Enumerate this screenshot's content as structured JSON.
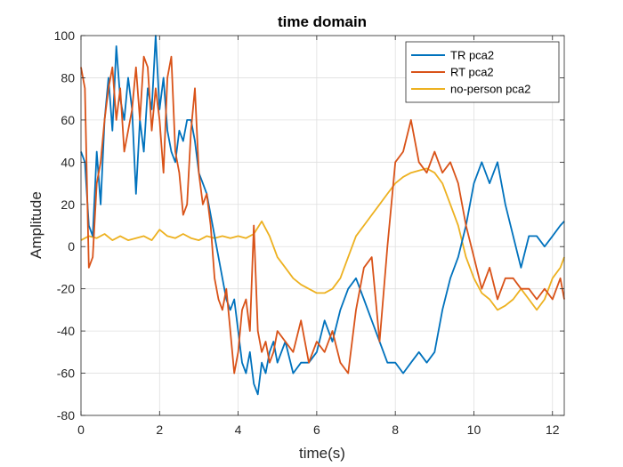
{
  "chart_data": {
    "type": "line",
    "title": "time domain",
    "xlabel": "time(s)",
    "ylabel": "Amplitude",
    "xlim": [
      0,
      12.3
    ],
    "ylim": [
      -80,
      100
    ],
    "xticks": [
      0,
      2,
      4,
      6,
      8,
      10,
      12
    ],
    "yticks": [
      -80,
      -60,
      -40,
      -20,
      0,
      20,
      40,
      60,
      80,
      100
    ],
    "xtick_labels": [
      "0",
      "2",
      "4",
      "6",
      "8",
      "10",
      "12"
    ],
    "ytick_labels": [
      "-80",
      "-60",
      "-40",
      "-20",
      "0",
      "20",
      "40",
      "60",
      "80",
      "100"
    ],
    "grid": true,
    "legend_position": "top-right",
    "series": [
      {
        "name": "TR pca2",
        "color": "#0072BD",
        "x": [
          0,
          0.1,
          0.2,
          0.3,
          0.4,
          0.5,
          0.6,
          0.7,
          0.8,
          0.9,
          1.0,
          1.1,
          1.2,
          1.3,
          1.4,
          1.5,
          1.6,
          1.7,
          1.8,
          1.9,
          2.0,
          2.1,
          2.2,
          2.3,
          2.4,
          2.5,
          2.6,
          2.7,
          2.8,
          2.9,
          3.0,
          3.1,
          3.2,
          3.3,
          3.4,
          3.5,
          3.6,
          3.7,
          3.8,
          3.9,
          4.0,
          4.1,
          4.2,
          4.3,
          4.4,
          4.5,
          4.6,
          4.7,
          4.8,
          4.9,
          5.0,
          5.2,
          5.4,
          5.6,
          5.8,
          6.0,
          6.2,
          6.4,
          6.6,
          6.8,
          7.0,
          7.2,
          7.4,
          7.6,
          7.8,
          8.0,
          8.2,
          8.4,
          8.6,
          8.8,
          9.0,
          9.2,
          9.4,
          9.6,
          9.8,
          10.0,
          10.2,
          10.4,
          10.6,
          10.8,
          11.0,
          11.2,
          11.4,
          11.6,
          11.8,
          12.0,
          12.2,
          12.3
        ],
        "y": [
          45,
          40,
          10,
          5,
          45,
          20,
          60,
          80,
          55,
          95,
          70,
          60,
          80,
          65,
          25,
          60,
          45,
          75,
          65,
          100,
          65,
          80,
          55,
          45,
          40,
          55,
          50,
          60,
          60,
          50,
          35,
          30,
          25,
          15,
          5,
          -5,
          -15,
          -25,
          -30,
          -25,
          -40,
          -55,
          -60,
          -50,
          -65,
          -70,
          -55,
          -60,
          -50,
          -45,
          -55,
          -45,
          -60,
          -55,
          -55,
          -50,
          -35,
          -45,
          -30,
          -20,
          -15,
          -25,
          -35,
          -45,
          -55,
          -55,
          -60,
          -55,
          -50,
          -55,
          -50,
          -30,
          -15,
          -5,
          10,
          30,
          40,
          30,
          40,
          20,
          5,
          -10,
          5,
          5,
          0,
          5,
          10,
          12
        ]
      },
      {
        "name": "RT pca2",
        "color": "#D95319",
        "x": [
          0,
          0.1,
          0.2,
          0.3,
          0.4,
          0.5,
          0.6,
          0.7,
          0.8,
          0.9,
          1.0,
          1.1,
          1.2,
          1.3,
          1.4,
          1.5,
          1.6,
          1.7,
          1.8,
          1.9,
          2.0,
          2.1,
          2.2,
          2.3,
          2.4,
          2.5,
          2.6,
          2.7,
          2.8,
          2.9,
          3.0,
          3.1,
          3.2,
          3.3,
          3.4,
          3.5,
          3.6,
          3.7,
          3.8,
          3.9,
          4.0,
          4.1,
          4.2,
          4.3,
          4.4,
          4.5,
          4.6,
          4.7,
          4.8,
          4.9,
          5.0,
          5.2,
          5.4,
          5.6,
          5.8,
          6.0,
          6.2,
          6.4,
          6.6,
          6.8,
          7.0,
          7.2,
          7.4,
          7.6,
          7.8,
          8.0,
          8.2,
          8.4,
          8.6,
          8.8,
          9.0,
          9.2,
          9.4,
          9.6,
          9.8,
          10.0,
          10.2,
          10.4,
          10.6,
          10.8,
          11.0,
          11.2,
          11.4,
          11.6,
          11.8,
          12.0,
          12.2,
          12.3
        ],
        "y": [
          85,
          75,
          -10,
          -5,
          30,
          40,
          60,
          75,
          85,
          60,
          75,
          45,
          55,
          65,
          85,
          60,
          90,
          85,
          55,
          75,
          60,
          35,
          80,
          90,
          45,
          35,
          15,
          20,
          55,
          75,
          35,
          20,
          25,
          10,
          -15,
          -25,
          -30,
          -20,
          -40,
          -60,
          -50,
          -30,
          -25,
          -40,
          10,
          -40,
          -50,
          -45,
          -55,
          -50,
          -40,
          -45,
          -50,
          -35,
          -55,
          -45,
          -50,
          -40,
          -55,
          -60,
          -30,
          -10,
          -5,
          -45,
          0,
          40,
          45,
          60,
          40,
          35,
          45,
          35,
          40,
          30,
          10,
          -5,
          -20,
          -10,
          -25,
          -15,
          -15,
          -20,
          -20,
          -25,
          -20,
          -25,
          -15,
          -25
        ]
      },
      {
        "name": "no-person pca2",
        "color": "#EDB120",
        "x": [
          0,
          0.2,
          0.4,
          0.6,
          0.8,
          1.0,
          1.2,
          1.4,
          1.6,
          1.8,
          2.0,
          2.2,
          2.4,
          2.6,
          2.8,
          3.0,
          3.2,
          3.4,
          3.6,
          3.8,
          4.0,
          4.2,
          4.4,
          4.6,
          4.8,
          5.0,
          5.2,
          5.4,
          5.6,
          5.8,
          6.0,
          6.2,
          6.4,
          6.6,
          6.8,
          7.0,
          7.2,
          7.4,
          7.6,
          7.8,
          8.0,
          8.2,
          8.4,
          8.6,
          8.8,
          9.0,
          9.2,
          9.4,
          9.6,
          9.8,
          10.0,
          10.2,
          10.4,
          10.6,
          10.8,
          11.0,
          11.2,
          11.4,
          11.6,
          11.8,
          12.0,
          12.2,
          12.3
        ],
        "y": [
          3,
          5,
          4,
          6,
          3,
          5,
          3,
          4,
          5,
          3,
          8,
          5,
          4,
          6,
          4,
          3,
          5,
          4,
          5,
          4,
          5,
          4,
          6,
          12,
          5,
          -5,
          -10,
          -15,
          -18,
          -20,
          -22,
          -22,
          -20,
          -15,
          -5,
          5,
          10,
          15,
          20,
          25,
          30,
          33,
          35,
          36,
          37,
          35,
          30,
          20,
          10,
          -5,
          -15,
          -22,
          -25,
          -30,
          -28,
          -25,
          -20,
          -25,
          -30,
          -25,
          -15,
          -10,
          -5
        ]
      }
    ]
  }
}
